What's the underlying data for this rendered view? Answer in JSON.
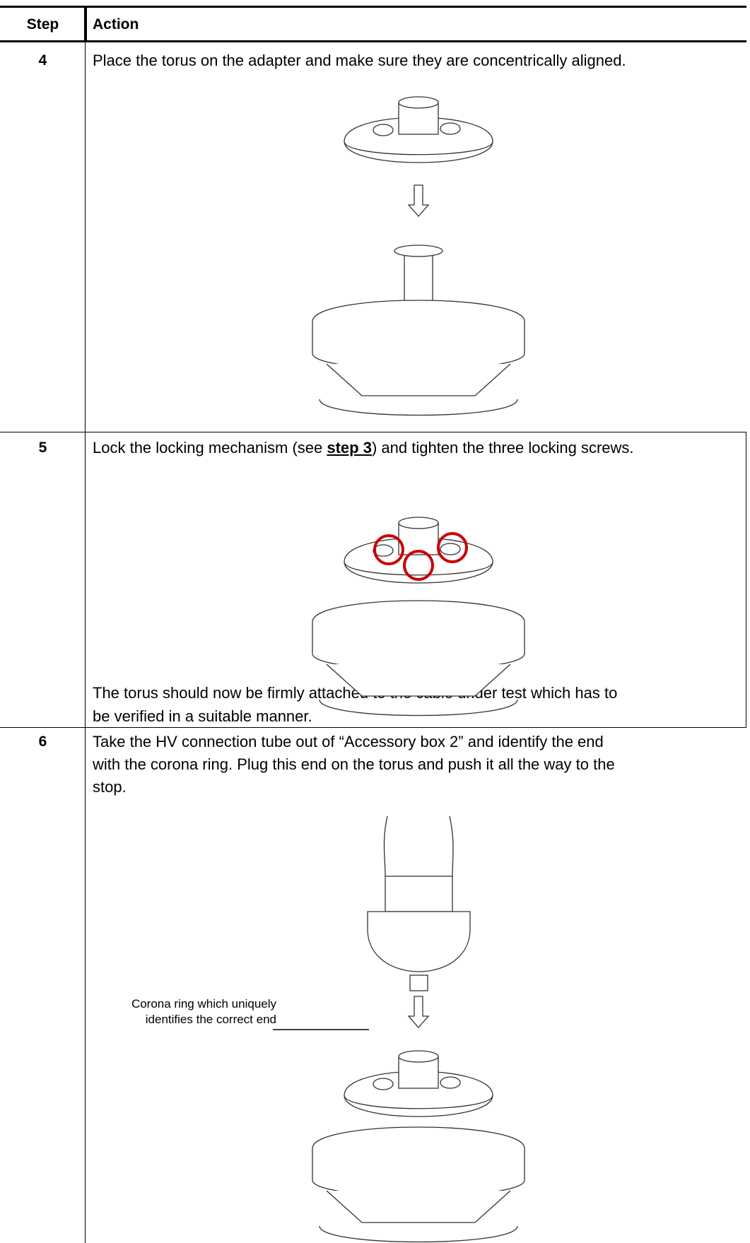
{
  "header": {
    "step": "Step",
    "action": "Action"
  },
  "rows": [
    {
      "step": "4",
      "text": "Place the torus on the adapter and make sure they are concentrically aligned."
    },
    {
      "step": "5",
      "text_before": "Lock the locking mechanism (see ",
      "link": "step 3",
      "text_after": ") and tighten the three locking screws.",
      "note": [
        "The torus should now be firmly attached to the cable under test which has to",
        "be verified in a suitable manner."
      ]
    },
    {
      "step": "6",
      "text": [
        "Take the HV connection tube out of “Accessory box 2” and identify the end",
        "with the corona ring. Plug this end on the torus and push it all the way to the",
        "stop."
      ],
      "callout": [
        "Corona ring which uniquely",
        "identifies the correct end"
      ]
    }
  ]
}
